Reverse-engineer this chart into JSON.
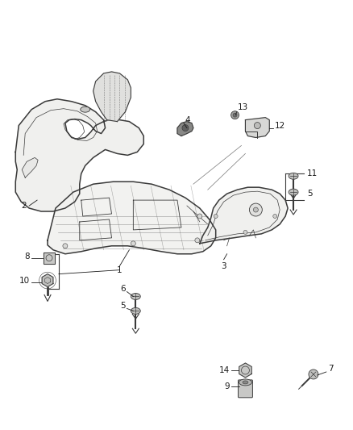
{
  "bg_color": "#ffffff",
  "line_color": "#3a3a3a",
  "label_color": "#1a1a1a",
  "fill_main": "#f5f5f3",
  "fill_shield": "#eeeeeb",
  "fill_dark": "#d8d8d5",
  "fill_screw": "#b0b0ae"
}
